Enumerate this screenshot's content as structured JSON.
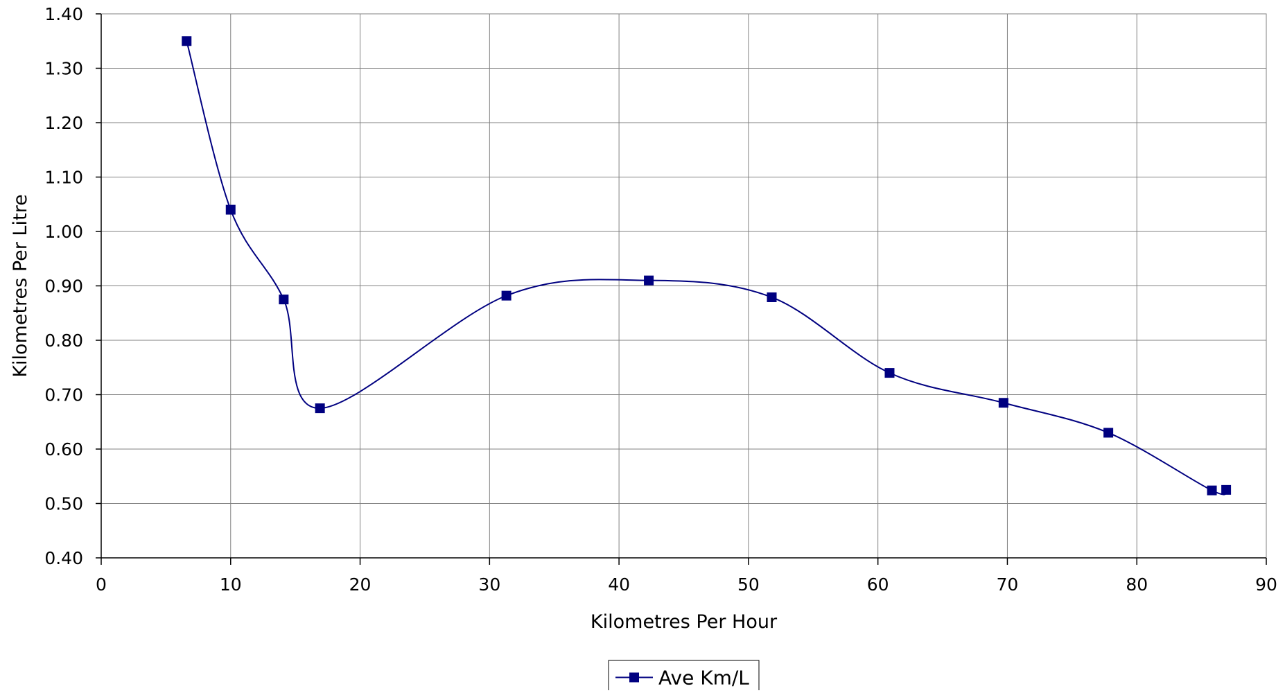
{
  "chart_data": {
    "type": "line",
    "title": "",
    "xlabel": "Kilometres Per Hour",
    "ylabel": "Kilometres Per Litre",
    "xlim": [
      0,
      90
    ],
    "ylim": [
      0.4,
      1.4
    ],
    "x_ticks": [
      "0",
      "10",
      "20",
      "30",
      "40",
      "50",
      "60",
      "70",
      "80",
      "90"
    ],
    "y_ticks": [
      "0.40",
      "0.50",
      "0.60",
      "0.70",
      "0.80",
      "0.90",
      "1.00",
      "1.10",
      "1.20",
      "1.30",
      "1.40"
    ],
    "grid": true,
    "smooth": true,
    "legend": "bottom-center",
    "series": [
      {
        "name": "Ave Km/L",
        "color": "#000080",
        "marker": "square",
        "x": [
          6.6,
          10.0,
          14.1,
          16.9,
          31.3,
          42.3,
          51.8,
          60.9,
          69.7,
          77.8,
          85.8,
          86.9
        ],
        "y": [
          1.35,
          1.04,
          0.875,
          0.675,
          0.882,
          0.91,
          0.879,
          0.74,
          0.685,
          0.63,
          0.524,
          0.525
        ]
      }
    ]
  }
}
